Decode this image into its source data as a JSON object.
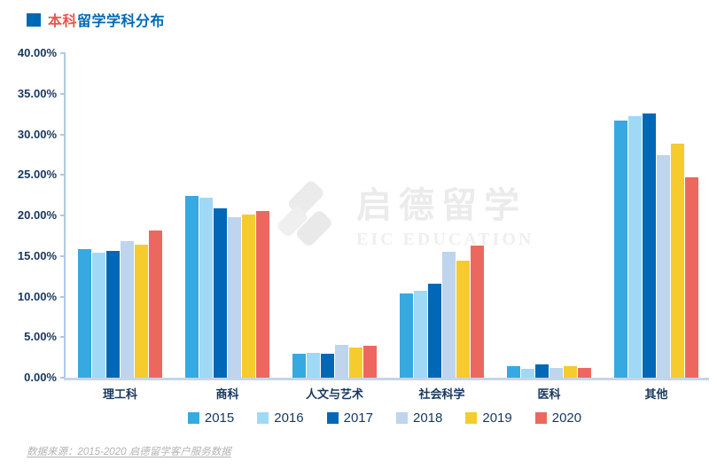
{
  "title": {
    "prefix": "本科",
    "rest": "留学学科分布"
  },
  "colors": {
    "title_blue": "#0069B4",
    "title_red": "#E8564A",
    "axis_text": "#17375E",
    "axis_line": "#AFC9E5",
    "watermark_gray": "#ebebeb"
  },
  "chart_data": {
    "type": "bar",
    "title": "本科留学学科分布",
    "categories": [
      "理工科",
      "商科",
      "人文与艺术",
      "社会科学",
      "医科",
      "其他"
    ],
    "series": [
      {
        "name": "2015",
        "color": "#36A9E1",
        "values": [
          15.9,
          22.4,
          2.9,
          10.4,
          1.4,
          31.7
        ]
      },
      {
        "name": "2016",
        "color": "#9FD9F6",
        "values": [
          15.4,
          22.2,
          3.1,
          10.7,
          1.1,
          32.2
        ]
      },
      {
        "name": "2017",
        "color": "#0068B7",
        "values": [
          15.6,
          20.9,
          2.9,
          11.6,
          1.6,
          32.6
        ]
      },
      {
        "name": "2018",
        "color": "#BFD4ED",
        "values": [
          16.8,
          19.8,
          4.1,
          15.5,
          1.2,
          27.4
        ]
      },
      {
        "name": "2019",
        "color": "#F5CB2E",
        "values": [
          16.4,
          20.1,
          3.7,
          14.4,
          1.4,
          28.8
        ]
      },
      {
        "name": "2020",
        "color": "#EC685F",
        "values": [
          18.1,
          20.6,
          3.9,
          16.3,
          1.2,
          24.7
        ]
      }
    ],
    "xlabel": "",
    "ylabel": "",
    "ylim": [
      0,
      40
    ],
    "y_ticks": [
      "40.00%",
      "35.00%",
      "30.00%",
      "25.00%",
      "20.00%",
      "15.00%",
      "10.00%",
      "5.00%",
      "0.00%"
    ],
    "grid": false,
    "legend_position": "bottom"
  },
  "watermark": {
    "cn": "启德留学",
    "en": "EIC EDUCATION"
  },
  "source_note": "数据来源：2015-2020 启德留学客户服务数据"
}
